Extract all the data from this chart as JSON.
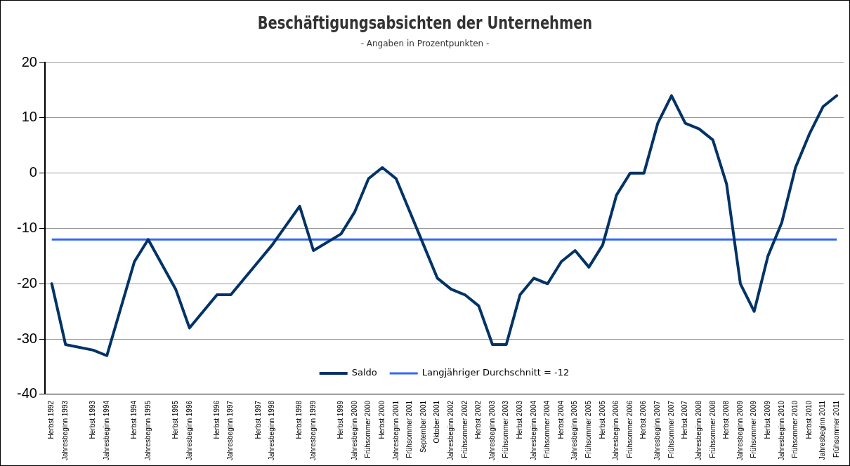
{
  "chart_data": {
    "type": "line",
    "title": "Beschäftigungsabsichten der Unternehmen",
    "subtitle": "- Angaben in Prozentpunkten -",
    "categories": [
      "Herbst 1992",
      "Jahresbeginn 1993",
      null,
      "Herbst 1993",
      "Jahresbeginn 1994",
      null,
      "Herbst 1994",
      "Jahresbeginn 1995",
      null,
      "Herbst 1995",
      "Jahresbeginn 1996",
      null,
      "Herbst 1996",
      "Jahresbeginn 1997",
      null,
      "Herbst 1997",
      "Jahresbeginn 1998",
      null,
      "Herbst 1998",
      "Jahresbeginn 1999",
      null,
      "Herbst 1999",
      "Jahresbeginn 2000",
      "Frühsommer 2000",
      "Herbst 2000",
      "Jahresbeginn 2001",
      "Frühsommer 2001",
      "September 2001",
      "Oktober 2001",
      "Jahresbeginn 2002",
      "Frühsommer 2002",
      "Herbst 2002",
      "Jahresbeginn 2003",
      "Frühsommer 2003",
      "Herbst 2003",
      "Jahresbeginn 2004",
      "Frühsommer 2004",
      "Herbst 2004",
      "Jahresbeginn 2005",
      "Frühsommer 2005",
      "Herbst 2005",
      "Jahresbeginn 2006",
      "Frühsommer 2006",
      "Herbst 2006",
      "Jahresbeginn 2007",
      "Frühsommer 2007",
      "Herbst 2007",
      "Jahresbeginn 2008",
      "Frühsommer 2008",
      "Herbst 2008",
      "Jahresbeginn 2009",
      "Frühsommer 2009",
      "Herbst 2009",
      "Jahresbeginn 2010",
      "Frühsommer 2010",
      "Herbst 2010",
      "Jahresbeginn 2011",
      "Frühsommer 2011"
    ],
    "series": [
      {
        "name": "Saldo",
        "color": "#003366",
        "values": [
          -20,
          -31,
          null,
          -32,
          -33,
          null,
          -16,
          -12,
          null,
          -21,
          -28,
          null,
          -22,
          -22,
          null,
          -16,
          -13,
          null,
          -6,
          -14,
          null,
          -11,
          -7,
          -1,
          1,
          -1,
          -7,
          -13,
          -19,
          -21,
          -22,
          -24,
          -31,
          -31,
          -22,
          -19,
          -20,
          -16,
          -14,
          -17,
          -13,
          -4,
          0,
          0,
          9,
          14,
          9,
          8,
          6,
          -2,
          -20,
          -25,
          -15,
          -9,
          1,
          7,
          12,
          14
        ]
      }
    ],
    "ref_lines": [
      {
        "axis": "y",
        "value": -12,
        "label": "Langjähriger Durchschnitt = -12",
        "color": "#3366ff"
      }
    ],
    "ylim": [
      -40,
      20
    ],
    "yticks": [
      -40,
      -30,
      -20,
      -10,
      0,
      10,
      20
    ],
    "grid": "y",
    "legend": "bottom",
    "marker": "none",
    "line_style": "solid"
  }
}
